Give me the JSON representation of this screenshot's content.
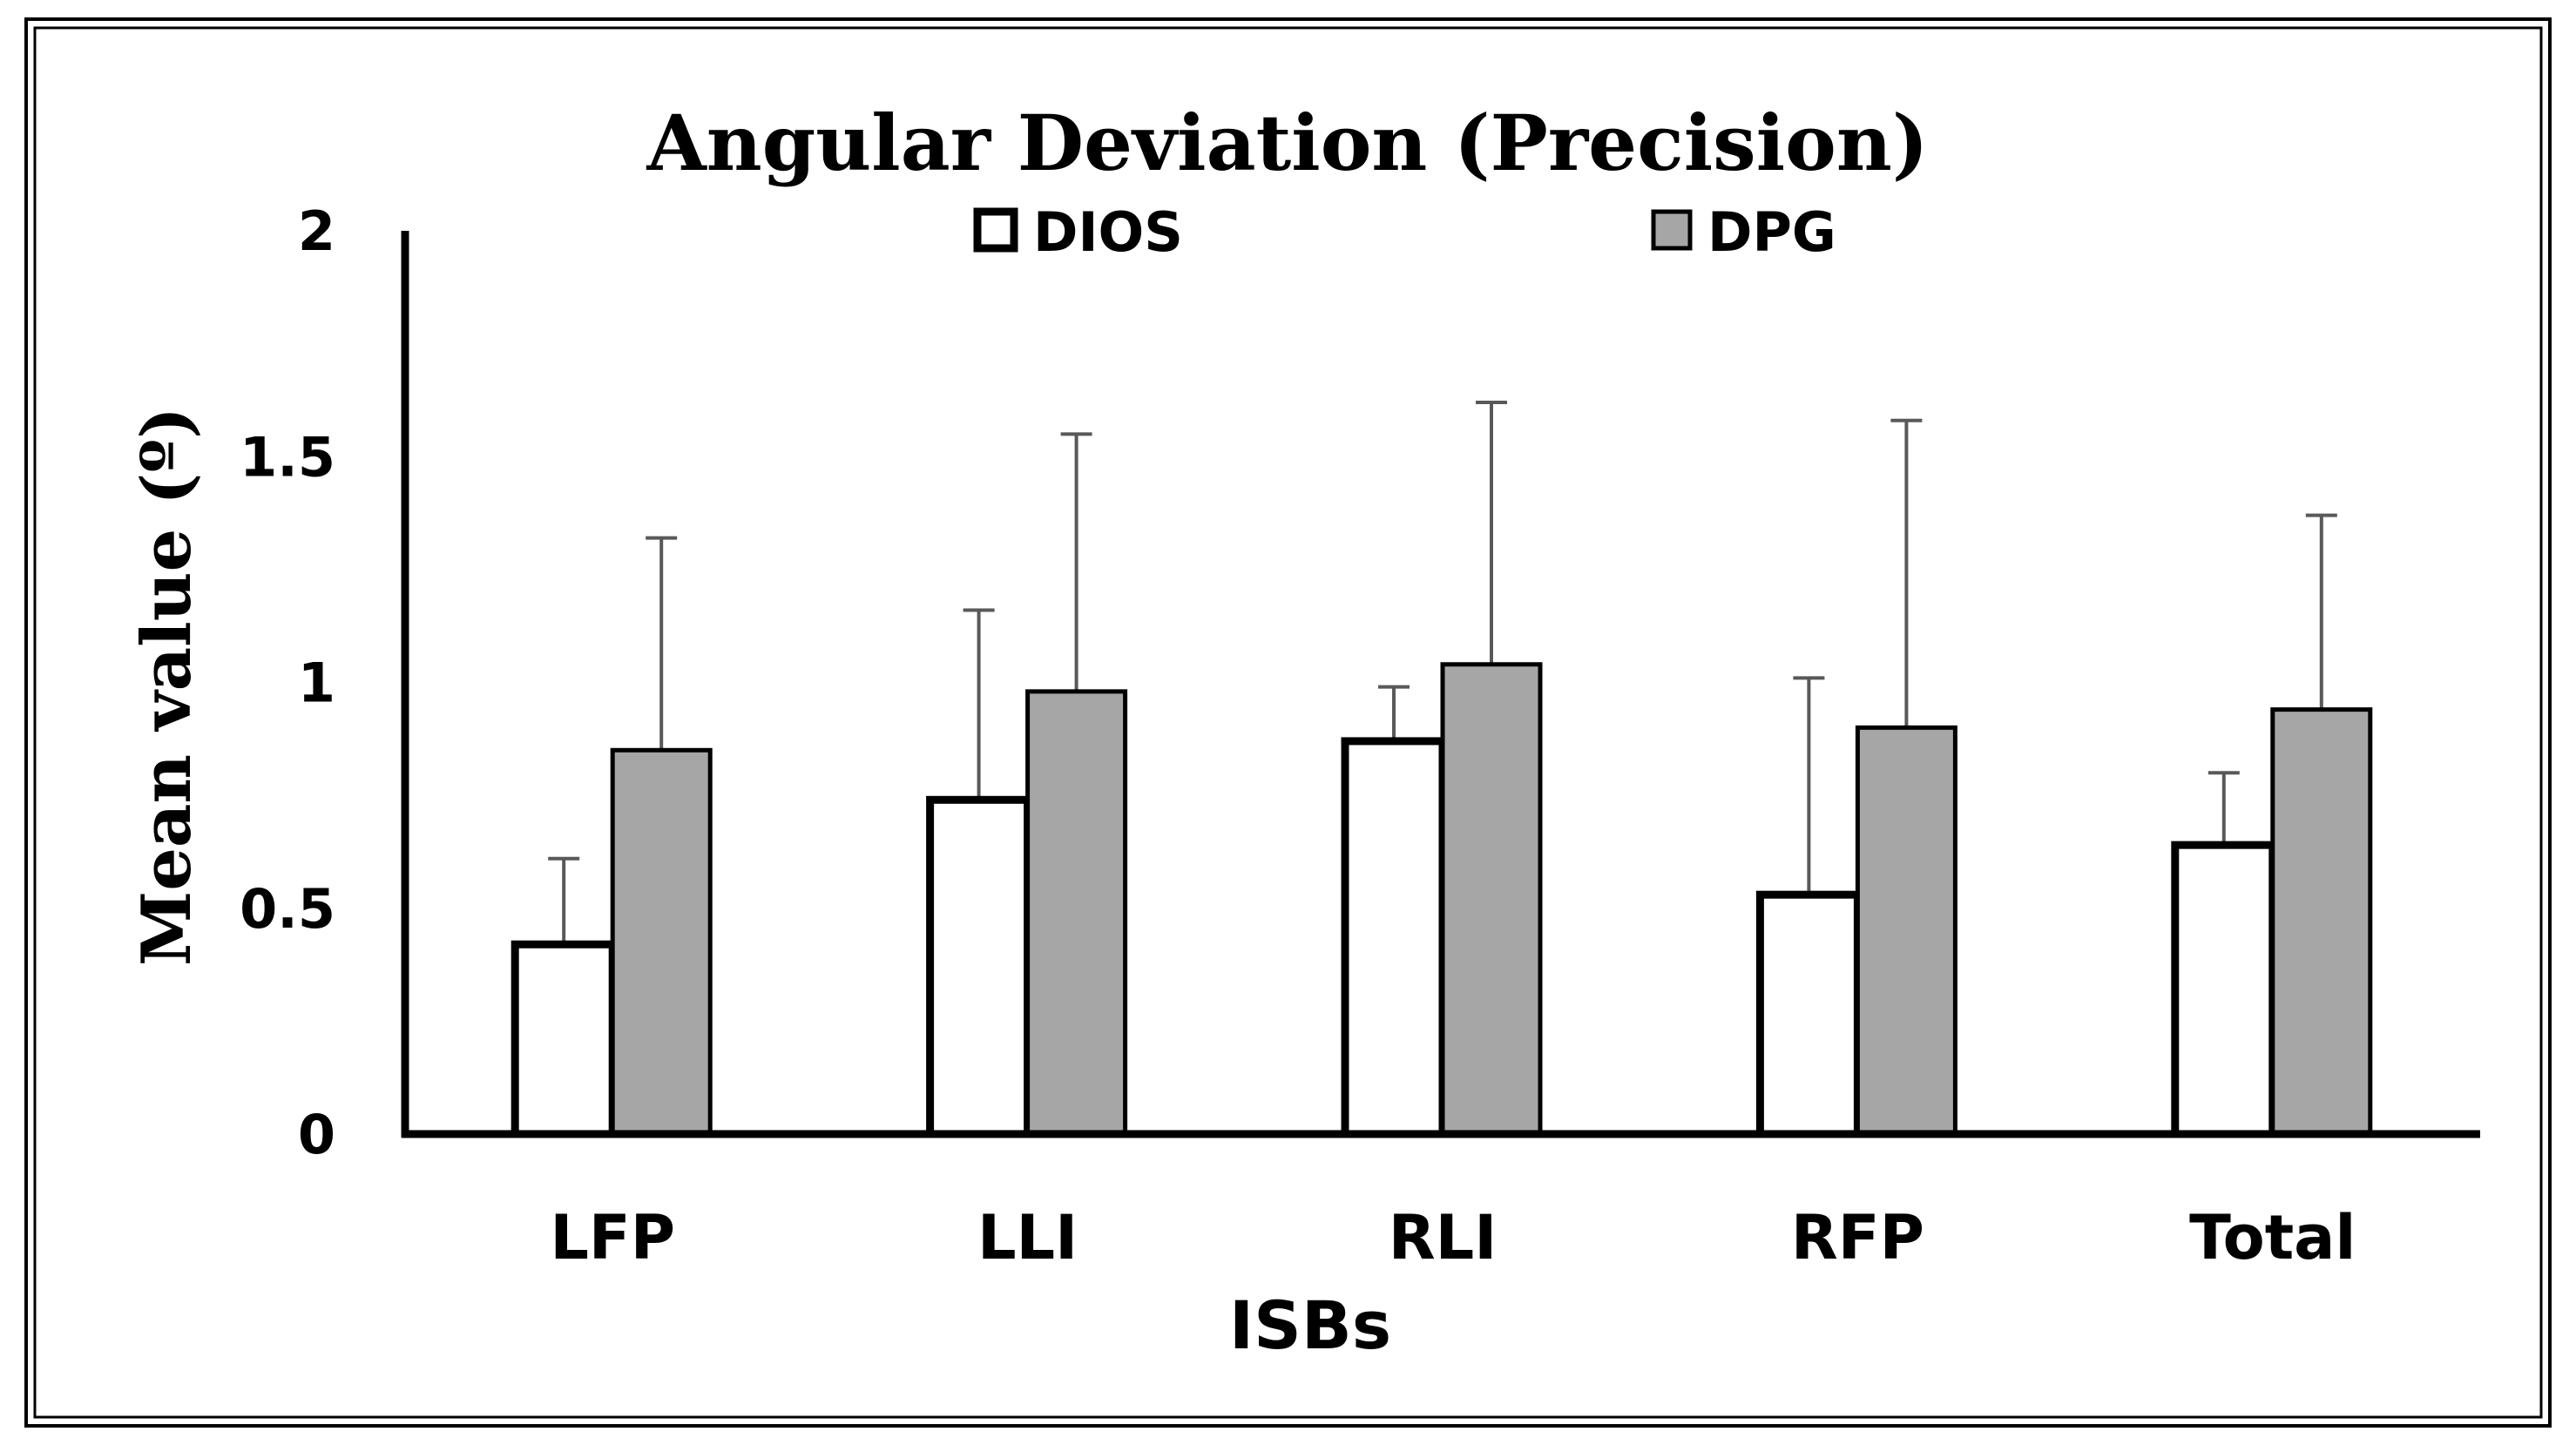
{
  "chart_data": {
    "type": "bar",
    "title": "Angular Deviation (Precision)",
    "xlabel": "ISBs",
    "ylabel": "Mean value (º)",
    "ylim": [
      0,
      2
    ],
    "yticks": [
      0,
      0.5,
      1,
      1.5,
      2
    ],
    "ytick_labels": [
      "0",
      "0.5",
      "1",
      "1.5",
      "2"
    ],
    "grid": false,
    "legend_position": "top",
    "categories": [
      "LFP",
      "LLI",
      "RLI",
      "RFP",
      "Total"
    ],
    "series": [
      {
        "name": "DIOS",
        "color": "#ffffff",
        "values": [
          0.42,
          0.74,
          0.87,
          0.53,
          0.64
        ],
        "errors": [
          0.19,
          0.42,
          0.12,
          0.48,
          0.16
        ]
      },
      {
        "name": "DPG",
        "color": "#a6a6a6",
        "values": [
          0.85,
          0.98,
          1.04,
          0.9,
          0.94
        ],
        "errors": [
          0.47,
          0.57,
          0.58,
          0.68,
          0.43
        ]
      }
    ]
  }
}
